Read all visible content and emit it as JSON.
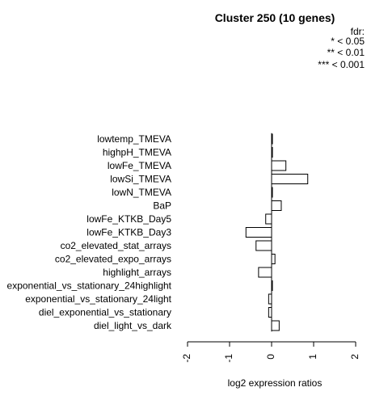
{
  "chart_data": {
    "type": "bar",
    "orientation": "horizontal",
    "title": "Cluster 250 (10 genes)",
    "xlabel": "log2 expression ratios",
    "ylabel": "",
    "xlim": [
      -2,
      2
    ],
    "x_ticks": [
      "-2",
      "-1",
      "0",
      "1",
      "2"
    ],
    "legend": {
      "title": "fdr:",
      "entries": [
        "* < 0.05",
        "** < 0.01",
        "*** < 0.001"
      ],
      "position": "top-right"
    },
    "categories": [
      "lowtemp_TMEVA",
      "highpH_TMEVA",
      "lowFe_TMEVA",
      "lowSi_TMEVA",
      "lowN_TMEVA",
      "BaP",
      "lowFe_KTKB_Day5",
      "lowFe_KTKB_Day3",
      "co2_elevated_stat_arrays",
      "co2_elevated_expo_arrays",
      "highlight_arrays",
      "exponential_vs_stationary_24highlight",
      "exponential_vs_stationary_24light",
      "diel_exponential_vs_stationary",
      "diel_light_vs_dark"
    ],
    "values": [
      0.01,
      0.02,
      0.34,
      0.86,
      0.01,
      0.23,
      -0.14,
      -0.61,
      -0.37,
      0.08,
      -0.31,
      0.01,
      -0.07,
      -0.07,
      0.18
    ]
  }
}
